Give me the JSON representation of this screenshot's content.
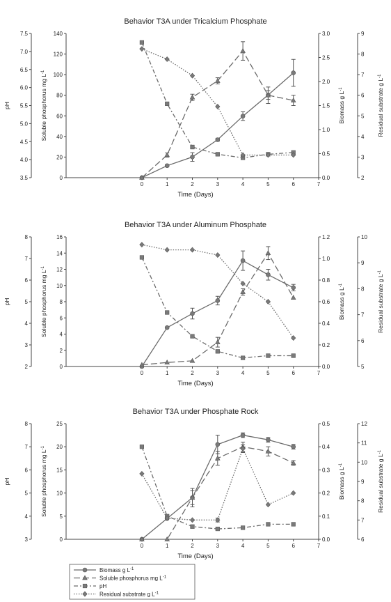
{
  "figure": {
    "x_label": "Time (Days)",
    "x_ticks": [
      "0",
      "1",
      "2",
      "3",
      "4",
      "5",
      "6",
      "7"
    ],
    "axis_labels": {
      "ph": "pH",
      "soluble_p": "Soluble phosphorus mg L",
      "biomass": "Biomass g L",
      "residual": "Residual substrate g L",
      "superscript": "-1"
    },
    "legend": [
      {
        "key": "biomass",
        "label": "Biomass g L",
        "sup": "-1"
      },
      {
        "key": "soluble_p",
        "label": "Soluble phosphorus mg L",
        "sup": "-1"
      },
      {
        "key": "ph",
        "label": "pH",
        "sup": ""
      },
      {
        "key": "residual",
        "label": "Residual substrate g L",
        "sup": "-1"
      }
    ],
    "colors": {
      "series": "#6b6b6b",
      "axis": "#444444",
      "marker_fill": "#7a7a7a"
    },
    "styles": {
      "biomass": {
        "dash": "solid",
        "marker": "circle"
      },
      "soluble_p": {
        "dash": "long-dash",
        "marker": "triangle"
      },
      "ph": {
        "dash": "dash-dot",
        "marker": "square"
      },
      "residual": {
        "dash": "dotted",
        "marker": "diamond"
      }
    }
  },
  "chart_data": [
    {
      "type": "line",
      "title": "Behavior T3A under Tricalcium Phosphate",
      "xlabel": "Time (Days)",
      "xlim": [
        -3,
        7
      ],
      "x": [
        0,
        1,
        2,
        3,
        4,
        5,
        6
      ],
      "axes": {
        "ph": {
          "range": [
            3.5,
            7.5
          ],
          "ticks": [
            "3.5",
            "4.0",
            "4.5",
            "5.0",
            "5.5",
            "6.0",
            "6.5",
            "7.0",
            "7.5"
          ]
        },
        "soluble_p": {
          "range": [
            0,
            140
          ],
          "ticks": [
            "0",
            "20",
            "40",
            "60",
            "80",
            "100",
            "120",
            "140"
          ]
        },
        "biomass": {
          "range": [
            0,
            3.0
          ],
          "ticks": [
            "0.0",
            "0.5",
            "1.0",
            "1.5",
            "2.0",
            "2.5",
            "3.0"
          ]
        },
        "residual": {
          "range": [
            2,
            9
          ],
          "ticks": [
            "2",
            "3",
            "4",
            "5",
            "6",
            "7",
            "8",
            "9"
          ]
        }
      },
      "series": [
        {
          "key": "biomass",
          "name": "Biomass g L-1",
          "axis": "biomass",
          "values": [
            0.0,
            0.25,
            0.43,
            0.79,
            1.28,
            1.72,
            2.18
          ],
          "errors": [
            0,
            0.02,
            0.09,
            0.03,
            0.09,
            0.09,
            0.28
          ]
        },
        {
          "key": "soluble_p",
          "name": "Soluble phosphorus mg L-1",
          "axis": "soluble_p",
          "values": [
            0,
            22,
            78,
            94,
            123,
            80,
            75
          ],
          "errors": [
            0,
            2,
            3,
            3,
            9,
            8,
            5
          ]
        },
        {
          "key": "ph",
          "name": "pH",
          "axis": "ph",
          "values": [
            7.25,
            5.55,
            4.35,
            4.15,
            4.05,
            4.15,
            4.2
          ],
          "errors": [
            0,
            0,
            0.05,
            0,
            0,
            0,
            0
          ]
        },
        {
          "key": "residual",
          "name": "Residual substrate g L-1",
          "axis": "residual",
          "values": [
            8.25,
            7.75,
            6.95,
            5.45,
            3.1,
            3.1,
            3.1
          ],
          "errors": [
            0,
            0,
            0,
            0,
            0,
            0,
            0
          ]
        }
      ]
    },
    {
      "type": "line",
      "title": "Behavior T3A under Aluminum Phosphate",
      "xlabel": "Time (Days)",
      "xlim": [
        -3,
        7
      ],
      "x": [
        0,
        1,
        2,
        3,
        4,
        5,
        6
      ],
      "axes": {
        "ph": {
          "range": [
            2,
            8
          ],
          "ticks": [
            "2",
            "3",
            "4",
            "5",
            "6",
            "7",
            "8"
          ]
        },
        "soluble_p": {
          "range": [
            0,
            16
          ],
          "ticks": [
            "0",
            "2",
            "4",
            "6",
            "8",
            "10",
            "12",
            "14",
            "16"
          ]
        },
        "biomass": {
          "range": [
            0,
            1.2
          ],
          "ticks": [
            "0.0",
            "0.2",
            "0.4",
            "0.6",
            "0.8",
            "1.0",
            "1.2"
          ]
        },
        "residual": {
          "range": [
            5,
            10
          ],
          "ticks": [
            "5",
            "6",
            "7",
            "8",
            "9",
            "10"
          ]
        }
      },
      "series": [
        {
          "key": "biomass",
          "name": "Biomass g L-1",
          "axis": "biomass",
          "values": [
            0.0,
            0.36,
            0.49,
            0.61,
            0.98,
            0.85,
            0.73
          ],
          "errors": [
            0,
            0,
            0.05,
            0.04,
            0.09,
            0.05,
            0.03
          ]
        },
        {
          "key": "soluble_p",
          "name": "Soluble phosphorus mg L-1",
          "axis": "soluble_p",
          "values": [
            0.2,
            0.5,
            0.7,
            3.0,
            9.2,
            14.0,
            8.5
          ],
          "errors": [
            0,
            0,
            0,
            0.6,
            0.4,
            0.8,
            0
          ]
        },
        {
          "key": "ph",
          "name": "pH",
          "axis": "ph",
          "values": [
            7.05,
            4.5,
            3.4,
            2.7,
            2.4,
            2.5,
            2.5
          ],
          "errors": [
            0,
            0,
            0,
            0,
            0,
            0,
            0
          ]
        },
        {
          "key": "residual",
          "name": "Residual substrate g L-1",
          "axis": "residual",
          "values": [
            9.7,
            9.5,
            9.5,
            9.3,
            8.2,
            7.5,
            6.1
          ],
          "errors": [
            0,
            0,
            0,
            0,
            0,
            0,
            0
          ]
        }
      ]
    },
    {
      "type": "line",
      "title": "Behavior T3A under Phosphate Rock",
      "xlabel": "Time (Days)",
      "xlim": [
        -3,
        7
      ],
      "x": [
        0,
        1,
        2,
        3,
        4,
        5,
        6
      ],
      "axes": {
        "ph": {
          "range": [
            3,
            8
          ],
          "ticks": [
            "3",
            "4",
            "5",
            "6",
            "7",
            "8"
          ]
        },
        "soluble_p": {
          "range": [
            0,
            25
          ],
          "ticks": [
            "0",
            "5",
            "10",
            "15",
            "20",
            "25"
          ]
        },
        "biomass": {
          "range": [
            0,
            0.5
          ],
          "ticks": [
            "0.0",
            "0.1",
            "0.2",
            "0.3",
            "0.4",
            "0.5"
          ]
        },
        "residual": {
          "range": [
            6,
            12
          ],
          "ticks": [
            "6",
            "7",
            "8",
            "9",
            "10",
            "11",
            "12"
          ]
        }
      },
      "series": [
        {
          "key": "biomass",
          "name": "Biomass g L-1",
          "axis": "biomass",
          "values": [
            0.0,
            0.09,
            0.18,
            0.41,
            0.45,
            0.43,
            0.4
          ],
          "errors": [
            0,
            0,
            0.03,
            0.04,
            0.01,
            0.01,
            0.01
          ]
        },
        {
          "key": "soluble_p",
          "name": "Soluble phosphorus mg L-1",
          "axis": "soluble_p",
          "values": [
            0,
            0,
            9,
            17.5,
            20,
            19,
            16.5
          ],
          "errors": [
            0,
            0,
            2,
            1.5,
            1,
            1,
            0.5
          ]
        },
        {
          "key": "ph",
          "name": "pH",
          "axis": "ph",
          "values": [
            7.0,
            4.0,
            3.55,
            3.45,
            3.5,
            3.65,
            3.65
          ],
          "errors": [
            0,
            0,
            0,
            0,
            0,
            0,
            0
          ]
        },
        {
          "key": "residual",
          "name": "Residual substrate g L-1",
          "axis": "residual",
          "values": [
            9.4,
            7.1,
            7.0,
            7.0,
            10.7,
            7.8,
            8.4
          ],
          "errors": [
            0,
            0,
            0,
            0.1,
            0.2,
            0,
            0
          ]
        }
      ]
    }
  ]
}
